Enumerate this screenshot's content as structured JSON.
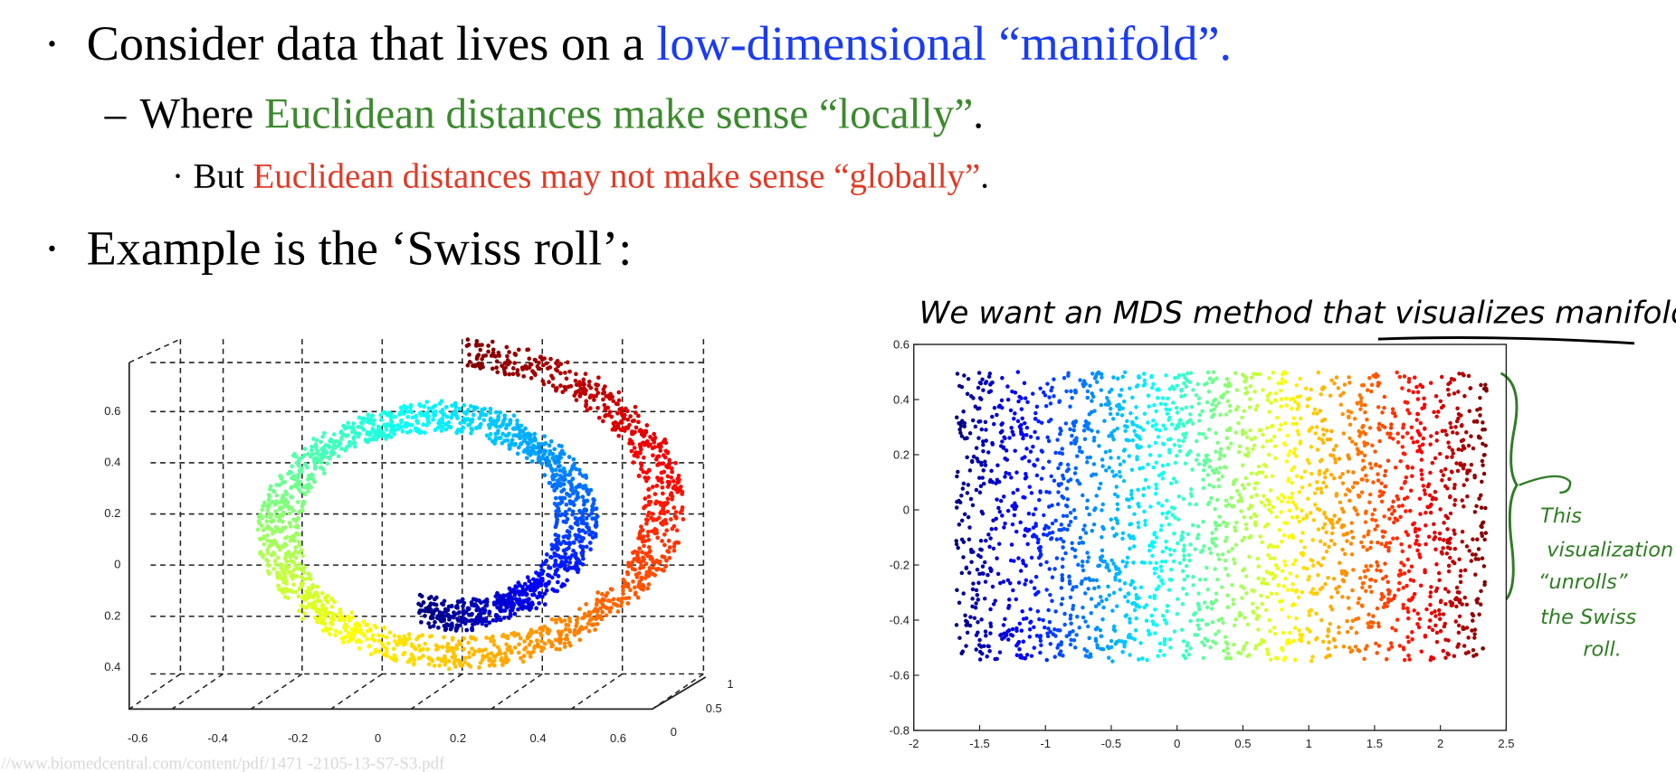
{
  "slide": {
    "line1": {
      "marker": "·",
      "plain": "Consider data that lives on a ",
      "highlight": "low-dimensional “manifold”."
    },
    "line2": {
      "marker": "–",
      "plain": "Where ",
      "highlight": "Euclidean distances make sense “locally”",
      "tail": "."
    },
    "line3": {
      "marker": "·",
      "plain": "But ",
      "highlight": "Euclidean distances may not make sense “globally”",
      "tail": "."
    },
    "line4": {
      "marker": "·",
      "plain": "Example is the ‘Swiss roll’:"
    },
    "note": {
      "plain": "We want an MDS method that ",
      "underlined": "visualizes manifolds"
    },
    "annotation": [
      "This",
      "visualization",
      "“unrolls”",
      "the Swiss",
      "roll."
    ],
    "source": "//www.biomedcentral.com/content/pdf/1471 -2105-13-S7-S3.pdf"
  },
  "left_plot": {
    "yticks": [
      "0.6",
      "0.4",
      "0.2",
      "0",
      "0.2",
      "0.4"
    ],
    "xticks": [
      "-0.6",
      "-0.4",
      "-0.2",
      "0",
      "0.2",
      "0.4",
      "0.6"
    ],
    "zticks": [
      "1",
      "0.5",
      "0"
    ]
  },
  "right_plot": {
    "xlim": [
      -2,
      2.5
    ],
    "ylim": [
      -0.8,
      0.6
    ],
    "xticks": [
      -2,
      -1.5,
      -1,
      -0.5,
      0,
      0.5,
      1,
      1.5,
      2,
      2.5
    ],
    "yticks": [
      -0.8,
      -0.6,
      -0.4,
      -0.2,
      0,
      0.2,
      0.4,
      0.6
    ]
  }
}
